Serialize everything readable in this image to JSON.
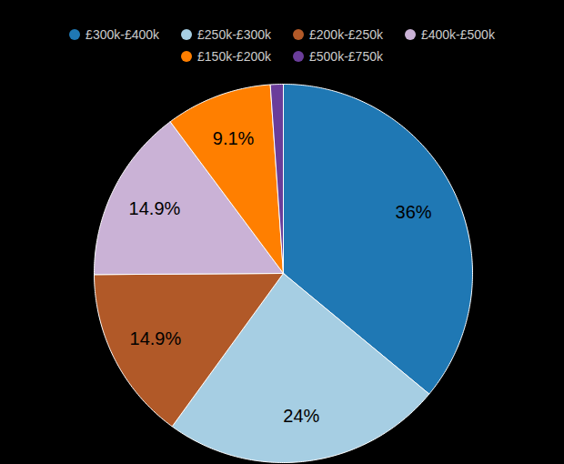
{
  "chart_data": {
    "type": "pie",
    "categories": [
      "£300k-£400k",
      "£250k-£300k",
      "£200k-£250k",
      "£400k-£500k",
      "£150k-£200k",
      "£500k-£750k"
    ],
    "values": [
      36,
      24,
      14.9,
      14.9,
      9.1,
      1.1
    ],
    "value_labels": [
      "36%",
      "24%",
      "14.9%",
      "14.9%",
      "9.1%",
      null
    ],
    "colors": [
      "#1f78b4",
      "#a6cee3",
      "#b15928",
      "#cab2d6",
      "#ff7f00",
      "#6a3d9a"
    ],
    "data_labels": true,
    "legend": "top"
  }
}
